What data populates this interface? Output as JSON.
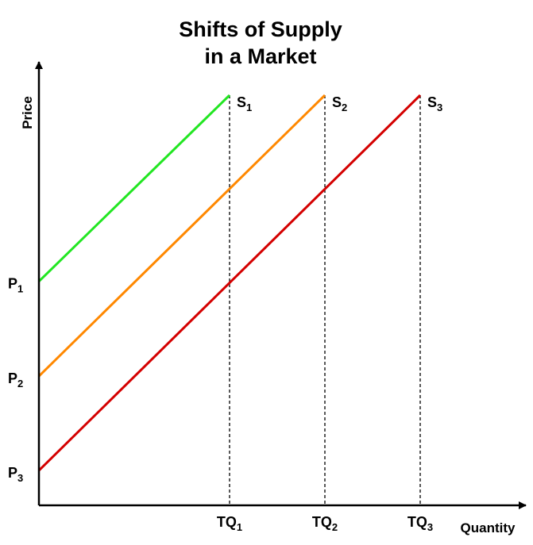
{
  "chart_data": {
    "type": "line",
    "title_lines": [
      "Shifts of Supply",
      "in a Market"
    ],
    "xlabel": "Quantity",
    "ylabel": "Price",
    "xlim": [
      0,
      100
    ],
    "ylim": [
      0,
      100
    ],
    "grid": false,
    "x_ticks": [
      {
        "base": "TQ",
        "sub": "1",
        "value": 40
      },
      {
        "base": "TQ",
        "sub": "2",
        "value": 60
      },
      {
        "base": "TQ",
        "sub": "3",
        "value": 80
      }
    ],
    "y_ticks": [
      {
        "base": "P",
        "sub": "1",
        "value": 54.6
      },
      {
        "base": "P",
        "sub": "2",
        "value": 31.5
      },
      {
        "base": "P",
        "sub": "3",
        "value": 8.5
      }
    ],
    "series": [
      {
        "base": "S",
        "sub": "1",
        "color": "#22e622",
        "points": [
          [
            0,
            54.6
          ],
          [
            40,
            100
          ]
        ]
      },
      {
        "base": "S",
        "sub": "2",
        "color": "#ff8800",
        "points": [
          [
            0,
            31.5
          ],
          [
            60,
            100
          ]
        ]
      },
      {
        "base": "S",
        "sub": "3",
        "color": "#d40000",
        "points": [
          [
            0,
            8.5
          ],
          [
            80,
            100
          ]
        ]
      }
    ],
    "guide_lines": [
      {
        "x": 40,
        "style": "dashed"
      },
      {
        "x": 60,
        "style": "dashed"
      },
      {
        "x": 80,
        "style": "dashed"
      }
    ]
  }
}
